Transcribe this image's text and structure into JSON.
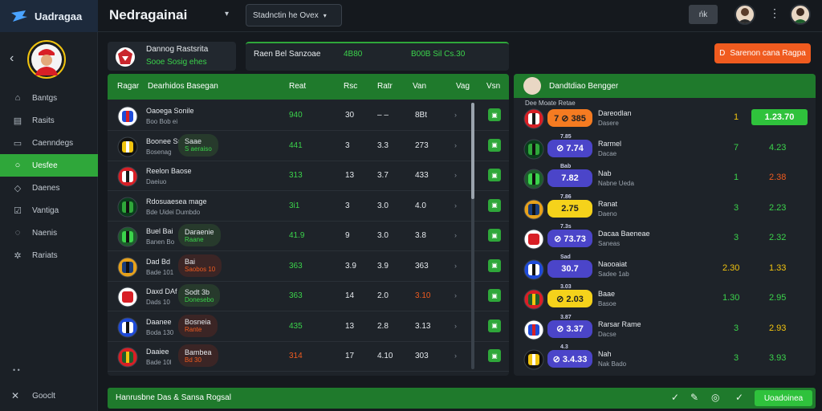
{
  "app": {
    "brand": "Uadragaa",
    "title": "Nedragainai"
  },
  "header": {
    "search_text": "Stadnctin he Ovex",
    "button_label": "ńk"
  },
  "sidebar": {
    "items": [
      {
        "label": "Bantgs",
        "icon": "home-icon"
      },
      {
        "label": "Rasits",
        "icon": "book-icon"
      },
      {
        "label": "Caenndegs",
        "icon": "calendar-icon"
      },
      {
        "label": "Uesfee",
        "icon": "globe-icon"
      },
      {
        "label": "Daenes",
        "icon": "tag-icon"
      },
      {
        "label": "Vantiga",
        "icon": "check-icon"
      },
      {
        "label": "Naenis",
        "icon": "settings-icon"
      },
      {
        "label": "Rariats",
        "icon": "cog-icon"
      }
    ],
    "active_index": 3,
    "bottom_label": "Gooclt",
    "dots": "• •"
  },
  "cards": {
    "card1": {
      "title": "Dannog   Rastsrita",
      "subtitle": "Sooe   Sosig ehes"
    },
    "card2": {
      "a": "Raen Bel Sanzoae",
      "b": "4B80",
      "c": "B00B  Sil Cs.30"
    }
  },
  "orange_button": {
    "icon": "D",
    "label": "Sarenon cana Ragpa"
  },
  "left_panel": {
    "headers": [
      "Ragar",
      "Dearhidos Basegan",
      "Reat",
      "Rsc",
      "Ratr",
      "Van",
      "Vag",
      "Vsn"
    ],
    "rows": [
      {
        "n1": "Oaoega   Sonile",
        "n2": "Boo  Bob  ei",
        "c1": "940",
        "c2": "30",
        "c3": "– –",
        "c4": "8Bt",
        "pill": null,
        "c1c": "g"
      },
      {
        "n1": "Boonee  Saae",
        "n2": "Bosenag",
        "c1": "441",
        "c2": "3",
        "c3": "3.3",
        "c4": "273",
        "pill": {
          "p1": "Saae",
          "p2": "S aeraiso",
          "t": "g"
        },
        "c1c": "g"
      },
      {
        "n1": "Reelon   Baose",
        "n2": "Daeiuo",
        "c1": "313",
        "c2": "13",
        "c3": "3.7",
        "c4": "433",
        "pill": null,
        "c1c": "g"
      },
      {
        "n1": "Rdosuaesea mage",
        "n2": "Bde Uidei Dumbdo",
        "c1": "3i1",
        "c2": "3",
        "c3": "3.0",
        "c4": "4.0",
        "pill": null,
        "c1c": "g"
      },
      {
        "n1": "Buel  Bai",
        "n2": "Banen  Bo",
        "c1": "41.9",
        "c2": "9",
        "c3": "3.0",
        "c4": "3.8",
        "pill": {
          "p1": "Daraenie",
          "p2": "Raane",
          "t": "g"
        },
        "c1c": "g"
      },
      {
        "n1": "Dad  Bd",
        "n2": "Bade  101",
        "c1": "363",
        "c2": "3.9",
        "c3": "3.9",
        "c4": "363",
        "pill": {
          "p1": "Bai",
          "p2": "Saobos 10",
          "t": "r"
        },
        "c1c": "g"
      },
      {
        "n1": "Daxd  DAf",
        "n2": "Dads  10",
        "c1": "363",
        "c2": "14",
        "c3": "2.0",
        "c4": "3.10",
        "pill": {
          "p1": "Sodt 3b",
          "p2": "Donesebo",
          "t": "g"
        },
        "c1c": "g"
      },
      {
        "n1": "Daanee",
        "n2": "Boda  130",
        "c1": "435",
        "c2": "13",
        "c3": "2.8",
        "c4": "3.13",
        "pill": {
          "p1": "Bosneia",
          "p2": "Rante",
          "t": "r"
        },
        "c1c": "g"
      },
      {
        "n1": "Daaiee",
        "n2": "Bade  10l",
        "c1": "314",
        "c2": "17",
        "c3": "4.10",
        "c4": "303",
        "pill": {
          "p1": "Bambea",
          "p2": "Bd  30",
          "t": "r"
        },
        "c1c": "o"
      }
    ]
  },
  "right_panel": {
    "title": "Dandtdiao  Bengger",
    "subtitle": "Dee Moate  Retae",
    "rows": [
      {
        "chip": "7  ⊘  385",
        "chip_type": "orange",
        "mini": "",
        "n1": "Dareodlan",
        "n2": "Dasere",
        "v1": "1",
        "v2": "1.23.70",
        "v1c": "y",
        "v2c": "box"
      },
      {
        "chip": "⊘ 7.74",
        "chip_type": "purple",
        "mini": "7.85",
        "n1": "Rarmel",
        "n2": "Dacae",
        "v1": "7",
        "v2": "4.23",
        "v1c": "g",
        "v2c": "g"
      },
      {
        "chip": "7.82",
        "chip_type": "purple",
        "mini": "Bab",
        "n1": "Nab",
        "n2": "Nabne  Ueda",
        "v1": "1",
        "v2": "2.38",
        "v1c": "g",
        "v2c": "o"
      },
      {
        "chip": "2.75",
        "chip_type": "yellow",
        "mini": "7.86",
        "n1": "Ranat",
        "n2": "Daeno",
        "v1": "3",
        "v2": "2.23",
        "v1c": "g",
        "v2c": "g"
      },
      {
        "chip": "⊘ 73.73",
        "chip_type": "purple",
        "mini": "7.3s",
        "n1": "Dacaa  Baeneae",
        "n2": "Saneas",
        "v1": "3",
        "v2": "2.32",
        "v1c": "g",
        "v2c": "g"
      },
      {
        "chip": "30.7",
        "chip_type": "purple",
        "mini": "Sad",
        "n1": "Naooaiat",
        "n2": "Sadee  1ab",
        "v1": "2.30",
        "v2": "1.33",
        "v1c": "y",
        "v2c": "y"
      },
      {
        "chip": "⊘ 2.03",
        "chip_type": "yellow",
        "mini": "3.03",
        "n1": "Baae",
        "n2": "Basoe",
        "v1": "1.30",
        "v2": "2.95",
        "v1c": "g",
        "v2c": "g"
      },
      {
        "chip": "⊘ 3.37",
        "chip_type": "purple",
        "mini": "3.87",
        "n1": "Rarsar Rame",
        "n2": "Dacse",
        "v1": "3",
        "v2": "2.93",
        "v1c": "g",
        "v2c": "y"
      },
      {
        "chip": "⊘ 3.4.33",
        "chip_type": "purple",
        "mini": "4.3",
        "n1": "Nah",
        "n2": "Nak  Bado",
        "v1": "3",
        "v2": "3.93",
        "v1c": "g",
        "v2c": "g"
      }
    ]
  },
  "bottom_bar": {
    "text": "Hanrusbne Das & Sansa Rogsal",
    "button": "Uoadoinea"
  },
  "colors": {
    "accent_green": "#2fa73a",
    "dark_green": "#1f7a2c",
    "orange": "#f05b1f",
    "purple": "#4b45c9",
    "yellow": "#f5d21b"
  }
}
